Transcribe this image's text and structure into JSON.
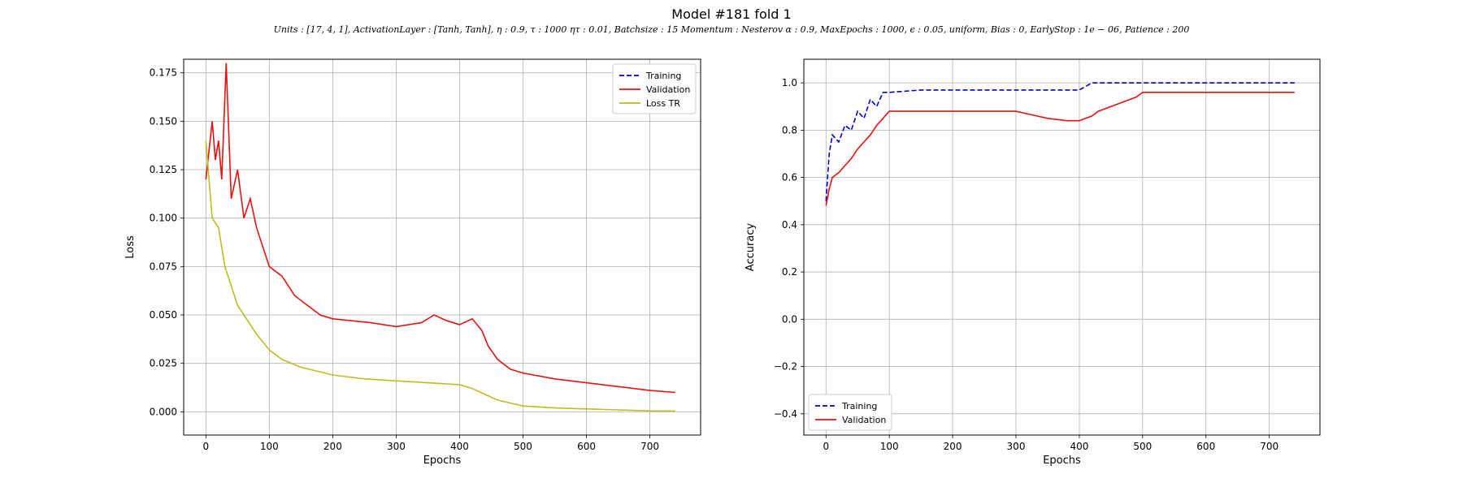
{
  "figure": {
    "title": "Model #181 fold 1",
    "subtitle": "Units : [17, 4, 1], ActivationLayer : [Tanh, Tanh], η : 0.9, τ : 1000 ητ : 0.01, Batchsize : 15 Momentum : Nesterov α : 0.9, MaxEpochs : 1000, ϵ : 0.05, uniform, Bias : 0, EarlyStop : 1e − 06, Patience : 200"
  },
  "chart_data": [
    {
      "type": "line",
      "xlabel": "Epochs",
      "ylabel": "Loss",
      "xlim": [
        -35,
        780
      ],
      "ylim": [
        -0.012,
        0.182
      ],
      "xticks": [
        0,
        100,
        200,
        300,
        400,
        500,
        600,
        700
      ],
      "yticks": [
        0.0,
        0.025,
        0.05,
        0.075,
        0.1,
        0.125,
        0.15,
        0.175
      ],
      "ytick_labels": [
        "0.000",
        "0.025",
        "0.050",
        "0.075",
        "0.100",
        "0.125",
        "0.150",
        "0.175"
      ],
      "grid": true,
      "legend": "top-right",
      "legend_entries": [
        "Training",
        "Validation",
        "Loss TR"
      ],
      "series": [
        {
          "name": "Validation",
          "color": "#e8110f",
          "style": "solid",
          "x": [
            0,
            5,
            10,
            15,
            20,
            25,
            32,
            40,
            50,
            60,
            70,
            80,
            90,
            100,
            120,
            140,
            160,
            180,
            200,
            230,
            260,
            300,
            340,
            360,
            380,
            400,
            420,
            435,
            445,
            460,
            480,
            500,
            550,
            600,
            650,
            700,
            740
          ],
          "y": [
            0.12,
            0.135,
            0.15,
            0.13,
            0.14,
            0.12,
            0.18,
            0.11,
            0.125,
            0.1,
            0.11,
            0.095,
            0.085,
            0.075,
            0.07,
            0.06,
            0.055,
            0.05,
            0.048,
            0.047,
            0.046,
            0.044,
            0.046,
            0.05,
            0.047,
            0.045,
            0.048,
            0.042,
            0.034,
            0.027,
            0.022,
            0.02,
            0.017,
            0.015,
            0.013,
            0.011,
            0.01
          ]
        },
        {
          "name": "Loss TR",
          "color": "#bcbd22",
          "style": "solid",
          "x": [
            0,
            5,
            10,
            20,
            30,
            40,
            50,
            60,
            80,
            100,
            120,
            150,
            200,
            250,
            300,
            350,
            400,
            420,
            440,
            460,
            500,
            550,
            600,
            650,
            700,
            740
          ],
          "y": [
            0.14,
            0.12,
            0.1,
            0.095,
            0.075,
            0.065,
            0.055,
            0.05,
            0.04,
            0.032,
            0.027,
            0.023,
            0.019,
            0.017,
            0.016,
            0.015,
            0.014,
            0.012,
            0.009,
            0.006,
            0.003,
            0.002,
            0.0015,
            0.001,
            0.0005,
            0.0004
          ]
        }
      ]
    },
    {
      "type": "line",
      "xlabel": "Epochs",
      "ylabel": "Accuracy",
      "xlim": [
        -35,
        780
      ],
      "ylim": [
        -0.49,
        1.1
      ],
      "xticks": [
        0,
        100,
        200,
        300,
        400,
        500,
        600,
        700
      ],
      "yticks": [
        -0.4,
        -0.2,
        0.0,
        0.2,
        0.4,
        0.6,
        0.8,
        1.0
      ],
      "ytick_labels": [
        "−0.4",
        "−0.2",
        "0.0",
        "0.2",
        "0.4",
        "0.6",
        "0.8",
        "1.0"
      ],
      "grid": true,
      "legend": "bottom-left",
      "legend_entries": [
        "Training",
        "Validation"
      ],
      "series": [
        {
          "name": "Training",
          "color": "#0000cc",
          "style": "dashed",
          "x": [
            0,
            5,
            10,
            20,
            30,
            40,
            50,
            60,
            70,
            80,
            90,
            100,
            150,
            200,
            300,
            400,
            420,
            500,
            600,
            700,
            740
          ],
          "y": [
            0.5,
            0.7,
            0.78,
            0.75,
            0.82,
            0.8,
            0.88,
            0.85,
            0.93,
            0.9,
            0.96,
            0.96,
            0.97,
            0.97,
            0.97,
            0.97,
            1.0,
            1.0,
            1.0,
            1.0,
            1.0
          ]
        },
        {
          "name": "Validation",
          "color": "#e8110f",
          "style": "solid",
          "x": [
            0,
            5,
            10,
            20,
            30,
            40,
            50,
            60,
            70,
            80,
            90,
            100,
            150,
            200,
            300,
            350,
            380,
            400,
            420,
            430,
            450,
            470,
            490,
            500,
            600,
            700,
            740
          ],
          "y": [
            0.48,
            0.55,
            0.6,
            0.62,
            0.65,
            0.68,
            0.72,
            0.75,
            0.78,
            0.82,
            0.85,
            0.88,
            0.88,
            0.88,
            0.88,
            0.85,
            0.84,
            0.84,
            0.86,
            0.88,
            0.9,
            0.92,
            0.94,
            0.96,
            0.96,
            0.96,
            0.96
          ]
        }
      ]
    }
  ]
}
